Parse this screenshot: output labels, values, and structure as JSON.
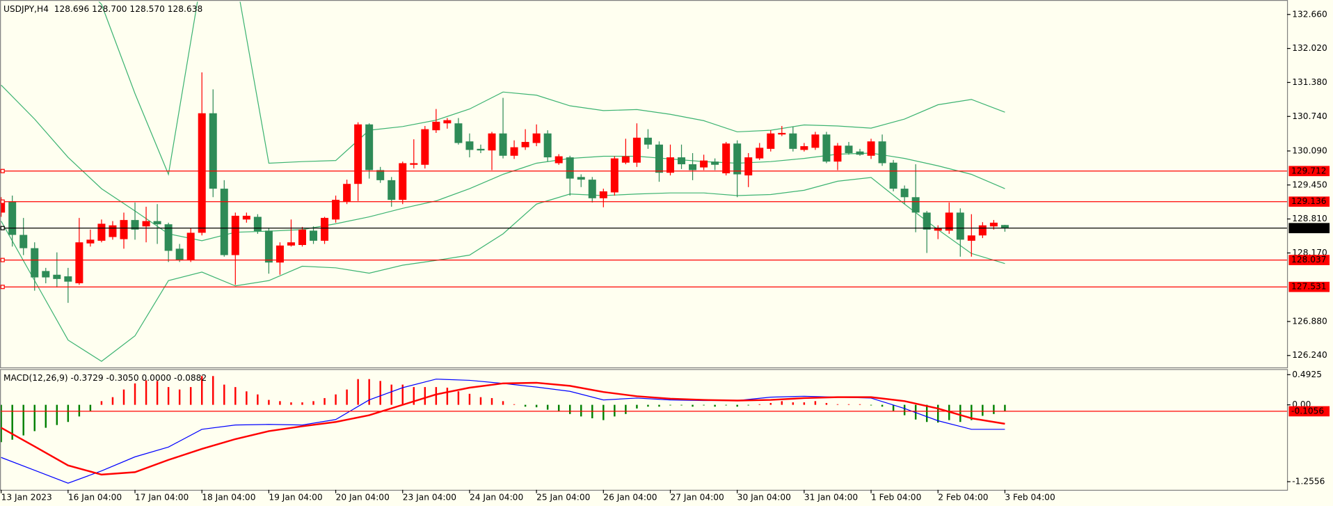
{
  "chart_data": [
    {
      "type": "candlestick",
      "title": "USDJPY,H4  128.696 128.700 128.570 128.638",
      "categories": [
        "13 Jan 2023",
        null,
        null,
        null,
        null,
        null,
        "16 Jan 04:00",
        null,
        null,
        null,
        null,
        null,
        "17 Jan 04:00",
        null,
        null,
        null,
        null,
        null,
        "18 Jan 04:00",
        null,
        null,
        null,
        null,
        null,
        "19 Jan 04:00",
        null,
        null,
        null,
        null,
        null,
        "20 Jan 04:00",
        null,
        null,
        null,
        null,
        null,
        "23 Jan 04:00",
        null,
        null,
        null,
        null,
        null,
        "24 Jan 04:00",
        null,
        null,
        null,
        null,
        null,
        "25 Jan 04:00",
        null,
        null,
        null,
        null,
        null,
        "26 Jan 04:00",
        null,
        null,
        null,
        null,
        null,
        "27 Jan 04:00",
        null,
        null,
        null,
        null,
        null,
        "30 Jan 04:00",
        null,
        null,
        null,
        null,
        null,
        "31 Jan 04:00",
        null,
        null,
        null,
        null,
        null,
        "1 Feb 04:00",
        null,
        null,
        null,
        null,
        null,
        "2 Feb 04:00",
        null,
        null,
        null,
        null,
        null,
        "3 Feb 04:00"
      ],
      "open": [
        128.93,
        129.14,
        128.51,
        128.26,
        127.83,
        127.76,
        127.73,
        127.6,
        128.35,
        128.4,
        128.47,
        128.43,
        128.79,
        128.67,
        128.77,
        128.71,
        128.25,
        128.03,
        128.55,
        130.8,
        129.38,
        128.13,
        128.8,
        128.85,
        128.59,
        127.99,
        128.31,
        128.32,
        128.59,
        128.4,
        128.8,
        129.14,
        129.47,
        130.59,
        129.73,
        129.54,
        129.17,
        129.83,
        129.83,
        130.48,
        130.61,
        130.61,
        130.27,
        130.13,
        130.1,
        130.42,
        130.0,
        130.16,
        130.24,
        130.42,
        129.86,
        129.97,
        129.6,
        129.55,
        129.2,
        129.31,
        129.87,
        129.87,
        130.34,
        130.21,
        129.68,
        129.97,
        129.84,
        129.78,
        129.89,
        129.67,
        130.23,
        129.63,
        129.95,
        130.13,
        130.4,
        130.42,
        130.11,
        130.15,
        130.4,
        129.89,
        130.19,
        130.08,
        130.0,
        130.27,
        129.87,
        129.38,
        129.22,
        128.93,
        128.59,
        128.59,
        128.93,
        128.4,
        128.5,
        128.67,
        128.696
      ],
      "high": [
        129.22,
        129.25,
        128.83,
        128.37,
        127.89,
        128.18,
        127.89,
        128.83,
        128.61,
        128.8,
        128.77,
        128.93,
        129.12,
        129.04,
        129.09,
        128.74,
        128.34,
        128.64,
        131.57,
        131.25,
        129.54,
        128.93,
        128.93,
        128.9,
        128.64,
        128.37,
        128.8,
        128.66,
        128.67,
        128.85,
        129.25,
        129.55,
        130.63,
        130.61,
        129.79,
        129.6,
        129.89,
        130.31,
        130.56,
        130.88,
        130.71,
        130.71,
        130.42,
        130.21,
        130.45,
        131.09,
        130.29,
        130.5,
        130.59,
        130.48,
        130.03,
        130.0,
        129.65,
        129.6,
        129.38,
        129.99,
        130.32,
        130.61,
        130.5,
        130.27,
        130.21,
        130.21,
        130.05,
        130.02,
        129.95,
        130.26,
        130.29,
        130.05,
        130.24,
        130.48,
        130.56,
        130.55,
        130.24,
        130.45,
        130.45,
        130.24,
        130.26,
        130.13,
        130.32,
        130.4,
        129.92,
        129.44,
        129.84,
        128.96,
        128.69,
        129.12,
        129.01,
        128.9,
        128.75,
        128.79,
        128.7
      ],
      "low": [
        128.85,
        128.29,
        128.13,
        127.46,
        127.6,
        127.52,
        127.23,
        127.57,
        128.29,
        128.37,
        128.42,
        128.25,
        128.42,
        128.37,
        128.34,
        128.0,
        128.0,
        128.0,
        128.5,
        129.22,
        128.1,
        127.57,
        128.74,
        128.53,
        127.78,
        127.76,
        128.29,
        128.29,
        128.34,
        128.34,
        128.74,
        129.09,
        129.15,
        129.57,
        129.49,
        129.04,
        129.09,
        129.76,
        129.76,
        130.43,
        130.51,
        130.21,
        129.97,
        130.05,
        129.73,
        129.95,
        129.94,
        130.11,
        130.18,
        129.89,
        129.83,
        129.25,
        129.41,
        129.12,
        129.03,
        129.25,
        129.84,
        129.79,
        130.13,
        129.51,
        129.63,
        129.75,
        129.54,
        129.73,
        129.73,
        129.63,
        129.22,
        129.41,
        129.92,
        130.08,
        130.37,
        130.08,
        130.08,
        130.11,
        129.86,
        129.73,
        130.02,
        130.0,
        129.94,
        129.81,
        129.33,
        129.09,
        128.56,
        128.17,
        128.43,
        128.53,
        128.1,
        128.1,
        128.45,
        128.61,
        128.57
      ],
      "close": [
        129.14,
        128.51,
        128.26,
        127.71,
        127.71,
        127.68,
        127.63,
        128.37,
        128.42,
        128.72,
        128.69,
        128.79,
        128.61,
        128.77,
        128.71,
        128.21,
        128.03,
        128.55,
        130.8,
        129.38,
        128.13,
        128.87,
        128.87,
        128.58,
        127.99,
        128.31,
        128.37,
        128.61,
        128.4,
        128.83,
        129.17,
        129.47,
        130.59,
        129.73,
        129.54,
        129.17,
        129.86,
        129.86,
        130.5,
        130.64,
        130.67,
        130.24,
        130.11,
        130.1,
        130.42,
        130.0,
        130.16,
        130.26,
        130.42,
        129.97,
        129.99,
        129.57,
        129.55,
        129.2,
        129.33,
        129.95,
        129.99,
        130.34,
        130.21,
        129.68,
        129.97,
        129.84,
        129.73,
        129.91,
        129.83,
        130.23,
        129.65,
        129.97,
        130.15,
        130.42,
        130.43,
        130.13,
        130.18,
        130.4,
        129.89,
        130.19,
        130.05,
        130.02,
        130.27,
        129.86,
        129.38,
        129.22,
        128.93,
        128.61,
        128.64,
        128.93,
        128.42,
        128.5,
        128.69,
        128.74,
        128.638
      ],
      "up_color": "#ff0000",
      "down_color": "#2e8b57",
      "bands": {
        "color": "#3cb371",
        "x": [
          0,
          3,
          6,
          9,
          12,
          15,
          18,
          21,
          24,
          27,
          30,
          33,
          36,
          39,
          42,
          45,
          48,
          51,
          54,
          57,
          60,
          63,
          66,
          69,
          72,
          75,
          78,
          81,
          84,
          87,
          90
        ],
        "upper": [
          null,
          null,
          133.5,
          132.85,
          131.17,
          129.65,
          133.4,
          133.4,
          129.86,
          129.89,
          129.91,
          130.48,
          130.55,
          130.67,
          130.88,
          131.2,
          131.14,
          130.94,
          130.85,
          130.87,
          130.78,
          130.66,
          130.45,
          130.48,
          130.58,
          130.56,
          130.52,
          130.69,
          130.96,
          131.06,
          130.82
        ],
        "middle": [
          131.33,
          130.69,
          129.97,
          129.38,
          128.96,
          128.53,
          128.4,
          128.56,
          128.58,
          128.61,
          128.72,
          128.85,
          129.01,
          129.15,
          129.38,
          129.65,
          129.86,
          129.95,
          129.99,
          129.99,
          129.94,
          129.89,
          129.86,
          129.89,
          129.95,
          130.03,
          130.05,
          129.95,
          129.81,
          129.65,
          129.38
        ],
        "lower": [
          128.77,
          127.65,
          126.53,
          126.13,
          126.61,
          127.65,
          127.81,
          127.55,
          127.65,
          127.92,
          127.89,
          127.79,
          127.94,
          128.03,
          128.13,
          128.53,
          129.09,
          129.28,
          129.25,
          129.28,
          129.3,
          129.3,
          129.25,
          129.27,
          129.35,
          129.52,
          129.59,
          129.09,
          128.61,
          128.16,
          127.97
        ]
      },
      "levels": [
        {
          "value": 129.712,
          "color": "#ff0000"
        },
        {
          "value": 129.136,
          "color": "#ff0000"
        },
        {
          "value": 128.638,
          "color": "#000000"
        },
        {
          "value": 128.037,
          "color": "#ff0000"
        },
        {
          "value": 127.531,
          "color": "#ff0000"
        }
      ],
      "ylim": [
        126.016,
        132.9
      ],
      "yticks": [
        {
          "value": 132.66,
          "label": "132.660"
        },
        {
          "value": 132.02,
          "label": "132.020"
        },
        {
          "value": 131.38,
          "label": "131.380"
        },
        {
          "value": 130.74,
          "label": "130.740"
        },
        {
          "value": 130.09,
          "label": "130.090"
        },
        {
          "value": 129.45,
          "label": "129.450"
        },
        {
          "value": 128.81,
          "label": "128.810"
        },
        {
          "value": 128.17,
          "label": "128.170"
        },
        {
          "value": 126.88,
          "label": "126.880"
        },
        {
          "value": 126.24,
          "label": "126.240"
        }
      ]
    },
    {
      "type": "macd",
      "title": "MACD(12,26,9) -0.3729 -0.3050 0.0000 -0.0882",
      "histogram": [
        -0.61,
        -0.57,
        -0.5,
        -0.43,
        -0.375,
        -0.33,
        -0.28,
        -0.19,
        -0.1,
        0.06,
        0.125,
        0.25,
        0.35,
        0.4,
        0.39,
        0.29,
        0.25,
        0.29,
        0.47,
        0.47,
        0.33,
        0.29,
        0.22,
        0.17,
        0.08,
        0.06,
        0.04,
        0.04,
        0.06,
        0.11,
        0.17,
        0.25,
        0.42,
        0.42,
        0.39,
        0.33,
        0.33,
        0.29,
        0.29,
        0.29,
        0.28,
        0.22,
        0.18,
        0.125,
        0.11,
        0.06,
        0.01,
        -0.03,
        -0.04,
        -0.08,
        -0.11,
        -0.15,
        -0.19,
        -0.22,
        -0.25,
        -0.19,
        -0.15,
        -0.06,
        -0.03,
        -0.03,
        -0.01,
        -0.01,
        -0.03,
        -0.01,
        -0.03,
        -0.01,
        -0.03,
        -0.01,
        0.01,
        0.03,
        0.06,
        0.04,
        0.04,
        0.06,
        0.03,
        0.01,
        0.01,
        0.01,
        -0.01,
        -0.03,
        -0.1,
        -0.17,
        -0.24,
        -0.28,
        -0.29,
        -0.25,
        -0.28,
        -0.25,
        -0.18,
        -0.15,
        -0.11
      ],
      "up_color": "#ff0000",
      "down_color": "#008000",
      "series": [
        {
          "color": "#0000ff",
          "width": 1,
          "x": [
            0,
            3,
            6,
            9,
            12,
            15,
            18,
            21,
            24,
            27,
            30,
            33,
            36,
            39,
            42,
            45,
            48,
            51,
            54,
            57,
            60,
            63,
            66,
            69,
            72,
            75,
            78,
            81,
            84,
            87,
            90
          ],
          "values": [
            -0.86,
            -1.07,
            -1.28,
            -1.08,
            -0.85,
            -0.69,
            -0.4,
            -0.33,
            -0.32,
            -0.33,
            -0.24,
            0.08,
            0.28,
            0.42,
            0.4,
            0.35,
            0.29,
            0.22,
            0.08,
            0.11,
            0.08,
            0.07,
            0.07,
            0.125,
            0.14,
            0.125,
            0.11,
            -0.06,
            -0.26,
            -0.4,
            -0.4
          ]
        },
        {
          "color": "#ff0000",
          "width": 2,
          "x": [
            0,
            3,
            6,
            9,
            12,
            15,
            18,
            21,
            24,
            27,
            30,
            33,
            36,
            39,
            42,
            45,
            48,
            51,
            54,
            57,
            60,
            63,
            66,
            69,
            72,
            75,
            78,
            81,
            84,
            87,
            90
          ],
          "values": [
            -0.375,
            -0.68,
            -0.99,
            -1.14,
            -1.1,
            -0.9,
            -0.72,
            -0.56,
            -0.43,
            -0.35,
            -0.28,
            -0.17,
            0,
            0.17,
            0.28,
            0.35,
            0.36,
            0.31,
            0.21,
            0.14,
            0.1,
            0.08,
            0.07,
            0.08,
            0.11,
            0.125,
            0.125,
            0.06,
            -0.06,
            -0.22,
            -0.31
          ]
        }
      ],
      "levels": [
        {
          "value": -0.1056,
          "color": "#ff0000"
        }
      ],
      "ylim": [
        -1.389,
        0.556
      ],
      "yticks": [
        0.4925,
        {
          "value": 0,
          "label": "0.00"
        },
        -1.2556
      ]
    }
  ]
}
